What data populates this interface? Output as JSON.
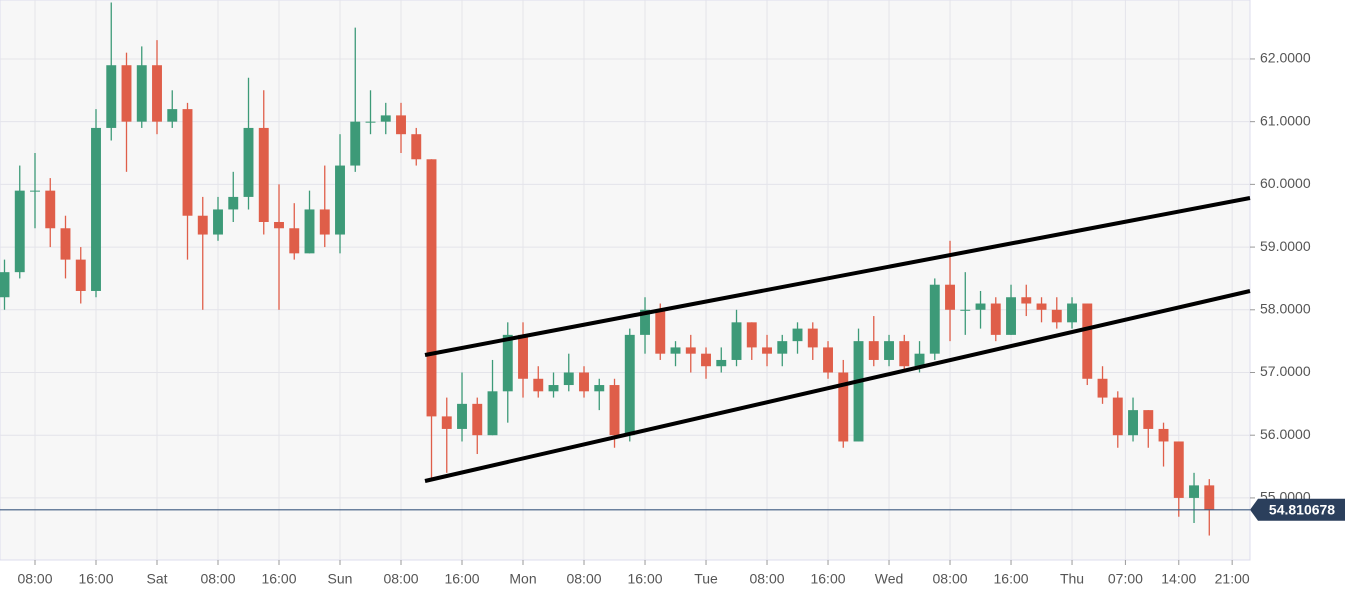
{
  "chart_data": {
    "type": "candlestick",
    "up_color": "#3d9a78",
    "down_color": "#df5e49",
    "grid": true,
    "ylim": [
      54.01,
      62.94
    ],
    "xlim": [
      3.41,
      167.34
    ],
    "yticks": [
      {
        "value": 55,
        "label": "55.0000"
      },
      {
        "value": 56,
        "label": "56.0000"
      },
      {
        "value": 57,
        "label": "57.0000"
      },
      {
        "value": 58,
        "label": "58.0000"
      },
      {
        "value": 59,
        "label": "59.0000"
      },
      {
        "value": 60,
        "label": "60.0000"
      },
      {
        "value": 61,
        "label": "61.0000"
      },
      {
        "value": 62,
        "label": "62.0000"
      }
    ],
    "xticks": [
      {
        "value": 8,
        "label": "08:00"
      },
      {
        "value": 16,
        "label": "16:00"
      },
      {
        "value": 24,
        "label": "Sat"
      },
      {
        "value": 32,
        "label": "08:00"
      },
      {
        "value": 40,
        "label": "16:00"
      },
      {
        "value": 48,
        "label": "Sun"
      },
      {
        "value": 56,
        "label": "08:00"
      },
      {
        "value": 64,
        "label": "16:00"
      },
      {
        "value": 72,
        "label": "Mon"
      },
      {
        "value": 80,
        "label": "08:00"
      },
      {
        "value": 88,
        "label": "16:00"
      },
      {
        "value": 96,
        "label": "Tue"
      },
      {
        "value": 104,
        "label": "08:00"
      },
      {
        "value": 112,
        "label": "16:00"
      },
      {
        "value": 120,
        "label": "Wed"
      },
      {
        "value": 128,
        "label": "08:00"
      },
      {
        "value": 136,
        "label": "16:00"
      },
      {
        "value": 144,
        "label": "Thu"
      },
      {
        "value": 151,
        "label": "07:00"
      },
      {
        "value": 158,
        "label": "14:00"
      },
      {
        "value": 165,
        "label": "21:00"
      }
    ],
    "last_price": 54.810678,
    "x": [
      4,
      6,
      8,
      10,
      12,
      14,
      16,
      18,
      20,
      22,
      24,
      26,
      28,
      30,
      32,
      34,
      36,
      38,
      40,
      42,
      44,
      46,
      48,
      50,
      52,
      54,
      56,
      58,
      60,
      62,
      64,
      66,
      68,
      70,
      72,
      74,
      76,
      78,
      80,
      82,
      84,
      86,
      88,
      90,
      92,
      94,
      96,
      98,
      100,
      102,
      104,
      106,
      108,
      110,
      112,
      114,
      116,
      118,
      120,
      122,
      124,
      126,
      128,
      130,
      132,
      134,
      136,
      138,
      140,
      142,
      144,
      146,
      148,
      150,
      152,
      154,
      156,
      158,
      160,
      162
    ],
    "open": [
      58.2,
      58.6,
      59.9,
      59.9,
      59.3,
      58.8,
      58.3,
      60.9,
      61.9,
      61.0,
      61.9,
      61.0,
      61.2,
      59.5,
      59.2,
      59.6,
      59.8,
      60.9,
      59.4,
      59.3,
      58.9,
      59.6,
      59.2,
      60.3,
      61.0,
      61.0,
      61.1,
      60.8,
      60.4,
      56.3,
      56.1,
      56.5,
      56.0,
      56.7,
      57.6,
      56.9,
      56.7,
      56.8,
      57.0,
      56.7,
      56.8,
      56.0,
      57.6,
      58.0,
      57.3,
      57.4,
      57.3,
      57.1,
      57.2,
      57.8,
      57.4,
      57.3,
      57.5,
      57.7,
      57.4,
      57.0,
      55.9,
      57.5,
      57.2,
      57.5,
      57.1,
      57.3,
      58.4,
      58.0,
      58.0,
      58.1,
      57.6,
      58.2,
      58.1,
      58.0,
      57.8,
      58.1,
      56.9,
      56.6,
      56.0,
      56.4,
      56.1,
      55.9,
      55.0,
      55.2
    ],
    "high": [
      58.8,
      60.3,
      60.5,
      60.1,
      59.5,
      59.0,
      61.2,
      62.9,
      62.1,
      62.2,
      62.3,
      61.5,
      61.3,
      59.8,
      59.8,
      60.2,
      61.7,
      61.5,
      60.0,
      59.7,
      59.9,
      60.3,
      60.8,
      62.5,
      61.5,
      61.3,
      61.3,
      60.9,
      60.4,
      56.6,
      57.0,
      56.6,
      57.2,
      57.8,
      57.8,
      57.1,
      57.0,
      57.3,
      57.1,
      56.9,
      56.9,
      57.7,
      58.2,
      58.1,
      57.5,
      57.6,
      57.4,
      57.4,
      58.0,
      57.8,
      57.6,
      57.6,
      57.8,
      57.8,
      57.5,
      57.2,
      57.7,
      57.9,
      57.6,
      57.6,
      57.5,
      58.5,
      59.1,
      58.6,
      58.3,
      58.2,
      58.4,
      58.4,
      58.2,
      58.2,
      58.2,
      58.1,
      57.1,
      56.7,
      56.6,
      56.4,
      56.2,
      55.9,
      55.4,
      55.3
    ],
    "low": [
      58.0,
      58.5,
      59.3,
      59.0,
      58.5,
      58.1,
      58.2,
      60.7,
      60.2,
      60.9,
      60.8,
      60.9,
      58.8,
      58.0,
      59.1,
      59.4,
      59.6,
      59.2,
      58.0,
      58.8,
      58.9,
      59.0,
      58.9,
      60.2,
      60.8,
      60.8,
      60.5,
      60.3,
      55.3,
      55.4,
      55.9,
      55.7,
      56.0,
      56.2,
      56.6,
      56.6,
      56.6,
      56.7,
      56.6,
      56.4,
      55.8,
      55.9,
      57.3,
      57.2,
      57.1,
      57.0,
      56.9,
      57.0,
      57.1,
      57.2,
      57.1,
      57.1,
      57.3,
      57.2,
      56.9,
      55.8,
      55.9,
      57.1,
      57.1,
      57.0,
      57.0,
      57.2,
      57.5,
      57.6,
      57.7,
      57.5,
      57.6,
      57.9,
      57.8,
      57.7,
      57.7,
      56.8,
      56.5,
      55.8,
      55.9,
      55.8,
      55.5,
      54.7,
      54.6,
      54.4
    ],
    "close": [
      58.6,
      59.9,
      59.9,
      59.3,
      58.8,
      58.3,
      60.9,
      61.9,
      61.0,
      61.9,
      61.0,
      61.2,
      59.5,
      59.2,
      59.6,
      59.8,
      60.9,
      59.4,
      59.3,
      58.9,
      59.6,
      59.2,
      60.3,
      61.0,
      61.0,
      61.1,
      60.8,
      60.4,
      56.3,
      56.1,
      56.5,
      56.0,
      56.7,
      57.6,
      56.9,
      56.7,
      56.8,
      57.0,
      56.7,
      56.8,
      56.0,
      57.6,
      58.0,
      57.3,
      57.4,
      57.3,
      57.1,
      57.2,
      57.8,
      57.4,
      57.3,
      57.5,
      57.7,
      57.4,
      57.0,
      55.9,
      57.5,
      57.2,
      57.5,
      57.1,
      57.3,
      58.4,
      58.0,
      58.0,
      58.1,
      57.6,
      58.2,
      58.1,
      58.0,
      57.8,
      58.1,
      56.9,
      56.6,
      56.0,
      56.4,
      56.1,
      55.9,
      55.0,
      55.2,
      54.81
    ]
  }
}
